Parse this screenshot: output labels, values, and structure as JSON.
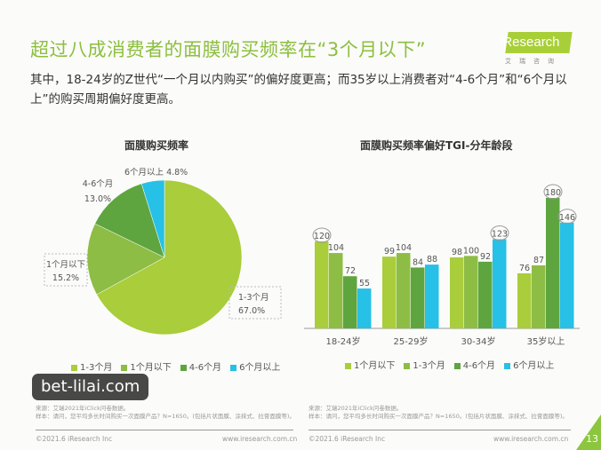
{
  "header": {
    "title": "超过八成消费者的面膜购买频率在“3个月以下”",
    "subtitle": "其中，18-24岁的Z世代“一个月以内购买”的偏好度更高；而35岁以上消费者对“4-6个月”和“6个月以上”的购买周期偏好度更高。",
    "logo_text": "iResearch",
    "logo_sub": "艾瑞咨询"
  },
  "colors": {
    "c1": "#a9cd3b",
    "c2": "#8dbd45",
    "c3": "#5ea53f",
    "c4": "#27c0e6",
    "title": "#8cbf3f"
  },
  "chart_data": [
    {
      "type": "pie",
      "title": "面膜购买频率",
      "categories": [
        "1-3个月",
        "1个月以下",
        "4-6个月",
        "6个月以上"
      ],
      "values": [
        67.0,
        15.2,
        13.0,
        4.8
      ],
      "labels": [
        "67.0%",
        "15.2%",
        "13.0%",
        "4.8%"
      ],
      "legend_position": "bottom"
    },
    {
      "type": "bar",
      "title": "面膜购买频率偏好TGI-分年龄段",
      "categories": [
        "18-24岁",
        "25-29岁",
        "30-34岁",
        "35岁以上"
      ],
      "series": [
        {
          "name": "1个月以下",
          "values": [
            120,
            99,
            98,
            76
          ]
        },
        {
          "name": "1-3个月",
          "values": [
            104,
            104,
            100,
            87
          ]
        },
        {
          "name": "4-6个月",
          "values": [
            72,
            84,
            92,
            180
          ]
        },
        {
          "name": "6个月以上",
          "values": [
            55,
            88,
            123,
            146
          ]
        }
      ],
      "circled": [
        "120",
        "123",
        "180",
        "146"
      ],
      "ylim": [
        0,
        180
      ],
      "grid": false,
      "legend_position": "bottom"
    }
  ],
  "footer": {
    "left_source": "来源：艾瑞2021年iClick问卷数据。",
    "left_sample": "样本：请问，您平均多长时间购买一次面膜产品？N=1650。(包括片状面膜、涂抹式、拉膏面膜等)。",
    "right_source": "来源：艾瑞2021年iClick问卷数据。",
    "right_sample": "样本：请问，您平均多长时间购买一次面膜产品？N=1650。(包括片状面膜、涂抹式、拉膏面膜等)。",
    "copyright": "©2021.6 iResearch Inc",
    "website": "www.iresearch.com.cn",
    "page_number": "13",
    "watermark": "bet-lilai.com"
  }
}
